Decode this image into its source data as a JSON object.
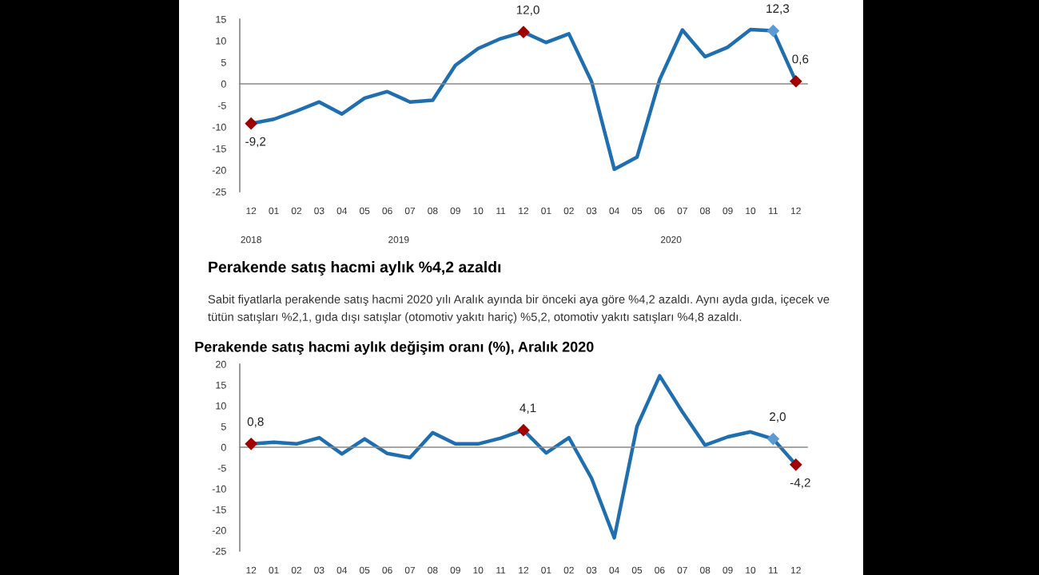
{
  "chart_data": [
    {
      "type": "line",
      "categories": [
        "12",
        "01",
        "02",
        "03",
        "04",
        "05",
        "06",
        "07",
        "08",
        "09",
        "10",
        "11",
        "12",
        "01",
        "02",
        "03",
        "04",
        "05",
        "06",
        "07",
        "08",
        "09",
        "10",
        "11",
        "12"
      ],
      "annotations": [
        "2018",
        "2019",
        "2020"
      ],
      "series": [
        {
          "color": "#1f6fb0",
          "values": [
            -9.2,
            -8.2,
            -6.3,
            -4.2,
            -7.0,
            -3.3,
            -1.8,
            -4.2,
            -3.8,
            4.3,
            8.2,
            10.5,
            12.0,
            9.6,
            11.6,
            0.5,
            -19.8,
            -17.0,
            1.0,
            12.5,
            6.3,
            8.5,
            12.6,
            12.3,
            0.6
          ],
          "value_labels": [
            "-9,2",
            null,
            null,
            null,
            null,
            null,
            null,
            null,
            null,
            null,
            null,
            null,
            "12,0",
            null,
            null,
            null,
            null,
            null,
            null,
            null,
            null,
            null,
            null,
            "12,3",
            "0,6"
          ],
          "colors": [
            "#a00000",
            null,
            null,
            null,
            null,
            null,
            null,
            null,
            null,
            null,
            null,
            null,
            "#a00000",
            null,
            null,
            null,
            null,
            null,
            null,
            null,
            null,
            null,
            null,
            "#5b9bd5",
            "#a00000"
          ]
        }
      ],
      "ylim": [
        -25,
        15
      ],
      "yticks": [
        -25,
        -20,
        -15,
        -10,
        -5,
        0,
        5,
        10,
        15
      ],
      "legend": false
    },
    {
      "type": "other",
      "title": "Perakende satış hacmi aylık %4,2 azaldı",
      "annotations": [
        "Sabit fiyatlarla perakende satış hacmi 2020 yılı Aralık ayında bir önceki aya göre %4,2 azaldı. Aynı ayda gıda, içecek ve",
        "tütün satışları %2,1, gıda dışı satışlar (otomotiv yakıtı hariç) %5,2, otomotiv yakıtı satışları %4,8 azaldı."
      ]
    },
    {
      "type": "line",
      "title": "Perakende satış hacmi aylık değişim oranı (%), Aralık 2020",
      "categories": [
        "12",
        "01",
        "02",
        "03",
        "04",
        "05",
        "06",
        "07",
        "08",
        "09",
        "10",
        "11",
        "12",
        "01",
        "02",
        "03",
        "04",
        "05",
        "06",
        "07",
        "08",
        "09",
        "10",
        "11",
        "12"
      ],
      "series": [
        {
          "color": "#1f6fb0",
          "values": [
            0.8,
            1.2,
            0.8,
            2.3,
            -1.6,
            2.0,
            -1.5,
            -2.5,
            3.5,
            0.8,
            0.8,
            2.2,
            4.1,
            -1.4,
            2.3,
            -7.5,
            -21.8,
            5.0,
            17.2,
            8.5,
            0.5,
            2.5,
            3.7,
            2.0,
            -4.2
          ],
          "value_labels": [
            "0,8",
            null,
            null,
            null,
            null,
            null,
            null,
            null,
            null,
            null,
            null,
            null,
            "4,1",
            null,
            null,
            null,
            null,
            null,
            null,
            null,
            null,
            null,
            null,
            "2,0",
            "-4,2"
          ],
          "colors": [
            "#a00000",
            null,
            null,
            null,
            null,
            null,
            null,
            null,
            null,
            null,
            null,
            null,
            "#a00000",
            null,
            null,
            null,
            null,
            null,
            null,
            null,
            null,
            null,
            null,
            "#5b9bd5",
            "#a00000"
          ]
        }
      ],
      "ylim": [
        -25,
        20
      ],
      "yticks": [
        -25,
        -20,
        -15,
        -10,
        -5,
        0,
        5,
        10,
        15,
        20
      ],
      "legend": false
    }
  ]
}
